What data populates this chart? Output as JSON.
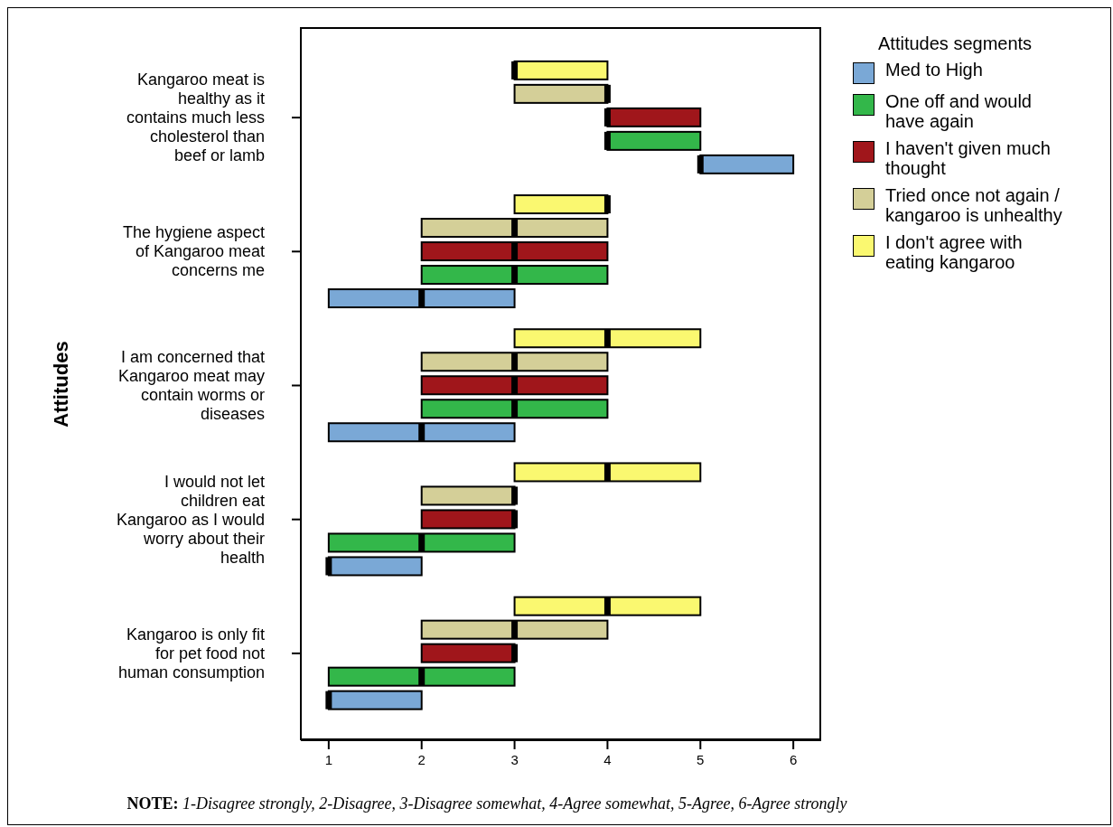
{
  "chart_data": {
    "type": "box",
    "orientation": "horizontal",
    "ylabel": "Attitudes",
    "legend_title": "Attitudes segments",
    "legend": "top right",
    "categories": [
      "Kangaroo meat is healthy as it contains much less cholesterol than beef or lamb",
      "The hygiene aspect of Kangaroo meat concerns me",
      "I am concerned that Kangaroo meat may contain worms or diseases",
      "I would not let children eat Kangaroo as I would worry about their health",
      "Kangaroo is only fit for pet food not human consumption"
    ],
    "xlim": [
      0.7,
      6.3
    ],
    "xticks": [
      1,
      2,
      3,
      4,
      5,
      6
    ],
    "series": [
      {
        "name": "Med to High",
        "color": "#7aa8d6",
        "boxes": [
          {
            "low": 5,
            "q1": 5,
            "median": 5,
            "q3": 6,
            "high": 6
          },
          {
            "low": 1,
            "q1": 1,
            "median": 2,
            "q3": 3,
            "high": 3
          },
          {
            "low": 1,
            "q1": 1,
            "median": 2,
            "q3": 3,
            "high": 3
          },
          {
            "low": 1,
            "q1": 1,
            "median": 1,
            "q3": 2,
            "high": 2
          },
          {
            "low": 1,
            "q1": 1,
            "median": 1,
            "q3": 2,
            "high": 2
          }
        ]
      },
      {
        "name": "One off and would have again",
        "color": "#33b74a",
        "boxes": [
          {
            "low": 4,
            "q1": 4,
            "median": 4,
            "q3": 5,
            "high": 5
          },
          {
            "low": 2,
            "q1": 2,
            "median": 3,
            "q3": 4,
            "high": 4
          },
          {
            "low": 2,
            "q1": 2,
            "median": 3,
            "q3": 4,
            "high": 4
          },
          {
            "low": 1,
            "q1": 1,
            "median": 2,
            "q3": 3,
            "high": 3
          },
          {
            "low": 1,
            "q1": 1,
            "median": 2,
            "q3": 3,
            "high": 3
          }
        ]
      },
      {
        "name": "I haven't given much thought",
        "color": "#a0161b",
        "boxes": [
          {
            "low": 4,
            "q1": 4,
            "median": 4,
            "q3": 5,
            "high": 5
          },
          {
            "low": 2,
            "q1": 2,
            "median": 3,
            "q3": 4,
            "high": 4
          },
          {
            "low": 2,
            "q1": 2,
            "median": 3,
            "q3": 4,
            "high": 4
          },
          {
            "low": 2,
            "q1": 2,
            "median": 3,
            "q3": 3,
            "high": 3
          },
          {
            "low": 2,
            "q1": 2,
            "median": 3,
            "q3": 3,
            "high": 3
          }
        ]
      },
      {
        "name": "Tried once not again / kangaroo is unhealthy",
        "color": "#d4cf98",
        "boxes": [
          {
            "low": 3,
            "q1": 3,
            "median": 4,
            "q3": 4,
            "high": 4
          },
          {
            "low": 2,
            "q1": 2,
            "median": 3,
            "q3": 4,
            "high": 4
          },
          {
            "low": 2,
            "q1": 2,
            "median": 3,
            "q3": 4,
            "high": 4
          },
          {
            "low": 2,
            "q1": 2,
            "median": 3,
            "q3": 3,
            "high": 3
          },
          {
            "low": 2,
            "q1": 2,
            "median": 3,
            "q3": 4,
            "high": 4
          }
        ]
      },
      {
        "name": "I don't agree with eating kangaroo",
        "color": "#faf870",
        "boxes": [
          {
            "low": 3,
            "q1": 3,
            "median": 3,
            "q3": 4,
            "high": 4
          },
          {
            "low": 3,
            "q1": 3,
            "median": 4,
            "q3": 4,
            "high": 4
          },
          {
            "low": 3,
            "q1": 3,
            "median": 4,
            "q3": 5,
            "high": 5
          },
          {
            "low": 3,
            "q1": 3,
            "median": 4,
            "q3": 5,
            "high": 5
          },
          {
            "low": 3,
            "q1": 3,
            "median": 4,
            "q3": 5,
            "high": 5
          }
        ]
      }
    ],
    "annotations": [
      "NOTE: 1-Disagree strongly, 2-Disagree, 3-Disagree somewhat, 4-Agree somewhat, 5-Agree, 6-Agree strongly"
    ]
  }
}
